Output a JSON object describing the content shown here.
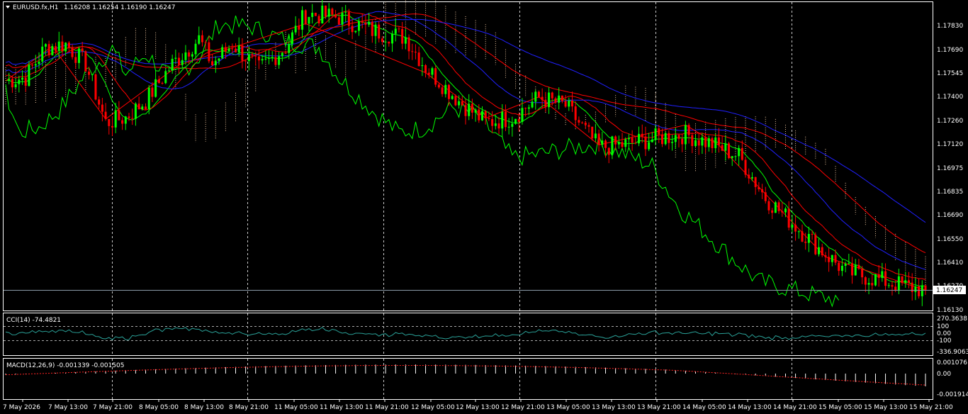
{
  "header": {
    "symbol": "EURUSD.fx,H1",
    "ohlc": "1.16208 1.16254 1.16190 1.16247"
  },
  "colors": {
    "bg": "#000000",
    "frame": "#ffffff",
    "grid": "#c8c8c8",
    "bull": "#00ff00",
    "bear": "#ff0000",
    "ma_red": "#ff0000",
    "ma_green": "#00ff00",
    "ma_blue": "#2020ff",
    "cloud": "#f0c8a0",
    "cci_line": "#2aa198",
    "macd_hist": "#ffffff",
    "macd_signal": "#ff2020"
  },
  "price_axis": {
    "labels": [
      "1.17830",
      "1.17690",
      "1.17545",
      "1.17400",
      "1.17260",
      "1.17120",
      "1.16975",
      "1.16835",
      "1.16690",
      "1.16550",
      "1.16410",
      "1.16270",
      "1.16130"
    ],
    "current": "1.16247"
  },
  "cci": {
    "title": "CCI(14) -74.4821",
    "labels": [
      "270.3638",
      "100",
      "0.00",
      "-100",
      "-336.9063"
    ]
  },
  "macd": {
    "title": "MACD(12,26,9) -0.001339 -0.001505",
    "labels": [
      "0.001076",
      "0.00",
      "-0.001914"
    ]
  },
  "time_axis": {
    "labels": [
      "7 May 2026",
      "7 May 13:00",
      "7 May 21:00",
      "8 May 05:00",
      "8 May 13:00",
      "8 May 21:00",
      "11 May 05:00",
      "11 May 13:00",
      "11 May 21:00",
      "12 May 05:00",
      "12 May 13:00",
      "12 May 21:00",
      "13 May 05:00",
      "13 May 13:00",
      "13 May 21:00",
      "14 May 05:00",
      "14 May 13:00",
      "14 May 21:00",
      "15 May 05:00",
      "15 May 13:00",
      "15 May 21:00"
    ]
  },
  "chart_data": {
    "type": "candlestick",
    "symbol": "EURUSD.fx",
    "timeframe": "H1",
    "ylim": [
      1.1613,
      1.179
    ],
    "last": 1.16247,
    "close_path": [
      [
        0,
        1.175
      ],
      [
        6,
        1.1752
      ],
      [
        12,
        1.177
      ],
      [
        18,
        1.1772
      ],
      [
        24,
        1.176
      ],
      [
        30,
        1.1725
      ],
      [
        36,
        1.1728
      ],
      [
        42,
        1.1738
      ],
      [
        50,
        1.176
      ],
      [
        58,
        1.1775
      ],
      [
        62,
        1.176
      ],
      [
        68,
        1.1772
      ],
      [
        76,
        1.1757
      ],
      [
        84,
        1.177
      ],
      [
        90,
        1.179
      ],
      [
        100,
        1.1788
      ],
      [
        110,
        1.178
      ],
      [
        120,
        1.1776
      ],
      [
        126,
        1.1758
      ],
      [
        136,
        1.1738
      ],
      [
        144,
        1.1725
      ],
      [
        152,
        1.1728
      ],
      [
        160,
        1.174
      ],
      [
        168,
        1.1735
      ],
      [
        178,
        1.171
      ],
      [
        186,
        1.1712
      ],
      [
        196,
        1.1716
      ],
      [
        204,
        1.1718
      ],
      [
        212,
        1.1712
      ],
      [
        220,
        1.1705
      ],
      [
        228,
        1.168
      ],
      [
        236,
        1.1665
      ],
      [
        244,
        1.165
      ],
      [
        252,
        1.1636
      ],
      [
        260,
        1.1632
      ],
      [
        268,
        1.1628
      ],
      [
        276,
        1.16247
      ]
    ],
    "time_labels": [
      "7 May 2026",
      "7 May 13:00",
      "7 May 21:00",
      "8 May 05:00",
      "8 May 13:00",
      "8 May 21:00",
      "11 May 05:00",
      "11 May 13:00",
      "11 May 21:00",
      "12 May 05:00",
      "12 May 13:00",
      "12 May 21:00",
      "13 May 05:00",
      "13 May 13:00",
      "13 May 21:00",
      "14 May 05:00",
      "14 May 13:00",
      "14 May 21:00",
      "15 May 05:00",
      "15 May 13:00",
      "15 May 21:00"
    ]
  }
}
